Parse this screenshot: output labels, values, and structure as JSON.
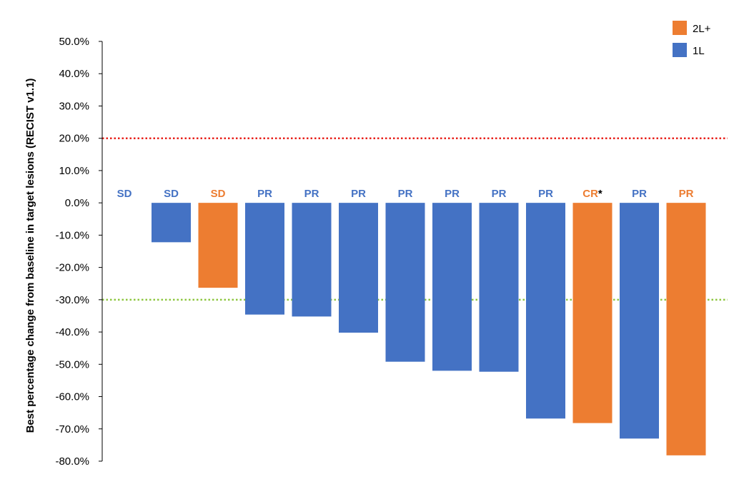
{
  "chart_data": {
    "type": "bar",
    "ylabel": "Best percentage change from baseline in target lesions (RECIST v1.1)",
    "ylim": [
      -80,
      50
    ],
    "yticks": [
      50,
      40,
      30,
      20,
      10,
      0,
      -10,
      -20,
      -30,
      -40,
      -50,
      -60,
      -70,
      -80
    ],
    "ytick_labels": [
      "50.0%",
      "40.0%",
      "30.0%",
      "20.0%",
      "10.0%",
      "0.0%",
      "-10.0%",
      "-20.0%",
      "-30.0%",
      "-40.0%",
      "-50.0%",
      "-60.0%",
      "-70.0%",
      "-80.0%"
    ],
    "reference_lines": [
      {
        "value": 20,
        "color": "#e8211b",
        "style": "dotted"
      },
      {
        "value": -30,
        "color": "#8dc63f",
        "style": "dotted"
      }
    ],
    "legend": {
      "position": "top-right",
      "entries": [
        {
          "name": "2L+",
          "color": "#ed7d31"
        },
        {
          "name": "1L",
          "color": "#4472c4"
        }
      ]
    },
    "bars": [
      {
        "value": 0,
        "group": "1L",
        "response": "SD",
        "marker": ""
      },
      {
        "value": -12.2,
        "group": "1L",
        "response": "SD",
        "marker": ""
      },
      {
        "value": -26.3,
        "group": "2L+",
        "response": "SD",
        "marker": ""
      },
      {
        "value": -34.6,
        "group": "1L",
        "response": "PR",
        "marker": ""
      },
      {
        "value": -35.2,
        "group": "1L",
        "response": "PR",
        "marker": ""
      },
      {
        "value": -40.2,
        "group": "1L",
        "response": "PR",
        "marker": ""
      },
      {
        "value": -49.2,
        "group": "1L",
        "response": "PR",
        "marker": ""
      },
      {
        "value": -52.0,
        "group": "1L",
        "response": "PR",
        "marker": ""
      },
      {
        "value": -52.3,
        "group": "1L",
        "response": "PR",
        "marker": ""
      },
      {
        "value": -66.8,
        "group": "1L",
        "response": "PR",
        "marker": ""
      },
      {
        "value": -68.2,
        "group": "2L+",
        "response": "CR",
        "marker": "*"
      },
      {
        "value": -73.0,
        "group": "1L",
        "response": "PR",
        "marker": ""
      },
      {
        "value": -78.2,
        "group": "2L+",
        "response": "PR",
        "marker": ""
      }
    ],
    "colors": {
      "1L": "#4472c4",
      "2L+": "#ed7d31",
      "axis": "#000000",
      "marker": "#000000"
    }
  }
}
